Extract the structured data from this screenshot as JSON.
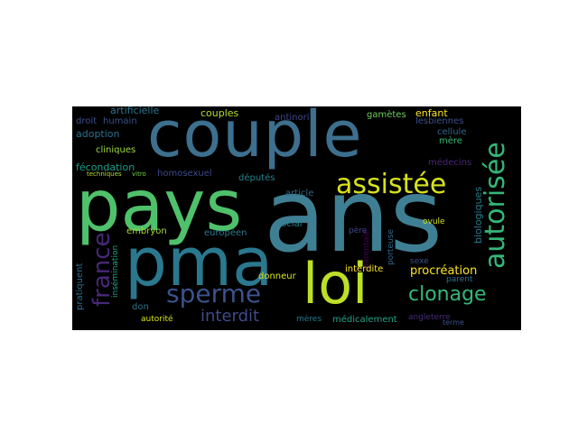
{
  "colors": {
    "background": "#000000",
    "page": "#ffffff"
  },
  "words": [
    {
      "text": "couple",
      "color": "#3d6f8e"
    },
    {
      "text": "pays",
      "color": "#4fc16b"
    },
    {
      "text": "ans",
      "color": "#3f7f93"
    },
    {
      "text": "pma",
      "color": "#2a788e"
    },
    {
      "text": "loi",
      "color": "#bddf26"
    },
    {
      "text": "autorisée",
      "color": "#35b779"
    },
    {
      "text": "assistée",
      "color": "#d8e219"
    },
    {
      "text": "sperme",
      "color": "#3b528b"
    },
    {
      "text": "clonage",
      "color": "#35b779"
    },
    {
      "text": "france",
      "color": "#482878"
    },
    {
      "text": "interdit",
      "color": "#3e4a89"
    },
    {
      "text": "procréation",
      "color": "#fde725"
    },
    {
      "text": "artificielle",
      "color": "#2a788e"
    },
    {
      "text": "couples",
      "color": "#b5de2b"
    },
    {
      "text": "adoption",
      "color": "#2c728e"
    },
    {
      "text": "enfant",
      "color": "#fde725"
    },
    {
      "text": "gamètes",
      "color": "#6ece58"
    },
    {
      "text": "lesbiennes",
      "color": "#3b528b"
    },
    {
      "text": "cellule",
      "color": "#31688e"
    },
    {
      "text": "mère",
      "color": "#35b779"
    },
    {
      "text": "cliniques",
      "color": "#a0da39"
    },
    {
      "text": "fécondation",
      "color": "#1f9e89"
    },
    {
      "text": "homosexuel",
      "color": "#3e4989"
    },
    {
      "text": "députés",
      "color": "#26828e"
    },
    {
      "text": "médecins",
      "color": "#482677"
    },
    {
      "text": "biologiques",
      "color": "#287d8e"
    },
    {
      "text": "antinori",
      "color": "#3e4989"
    },
    {
      "text": "article",
      "color": "#31688e"
    },
    {
      "text": "social",
      "color": "#26828e"
    },
    {
      "text": "européen",
      "color": "#2a788e"
    },
    {
      "text": "embryon",
      "color": "#a2da37"
    },
    {
      "text": "droit",
      "color": "#3b528b"
    },
    {
      "text": "humain",
      "color": "#3b528b"
    },
    {
      "text": "techniques",
      "color": "#b5de2b"
    },
    {
      "text": "vitro",
      "color": "#7ad151"
    },
    {
      "text": "insémination",
      "color": "#20a386"
    },
    {
      "text": "pratiquent",
      "color": "#2d708e"
    },
    {
      "text": "parentale",
      "color": "#440154"
    },
    {
      "text": "porteuse",
      "color": "#31688e"
    },
    {
      "text": "interdite",
      "color": "#fde725"
    },
    {
      "text": "donneur",
      "color": "#dde318"
    },
    {
      "text": "père",
      "color": "#3f4889"
    },
    {
      "text": "ovule",
      "color": "#d2e21b"
    },
    {
      "text": "sexe",
      "color": "#3b528b"
    },
    {
      "text": "parent",
      "color": "#2c728e"
    },
    {
      "text": "don",
      "color": "#2c728e"
    },
    {
      "text": "autorité",
      "color": "#d8e219"
    },
    {
      "text": "mères",
      "color": "#2a788e"
    },
    {
      "text": "médicalement",
      "color": "#20a486"
    },
    {
      "text": "angleterre",
      "color": "#472d7b"
    },
    {
      "text": "terme",
      "color": "#3b528b"
    }
  ]
}
